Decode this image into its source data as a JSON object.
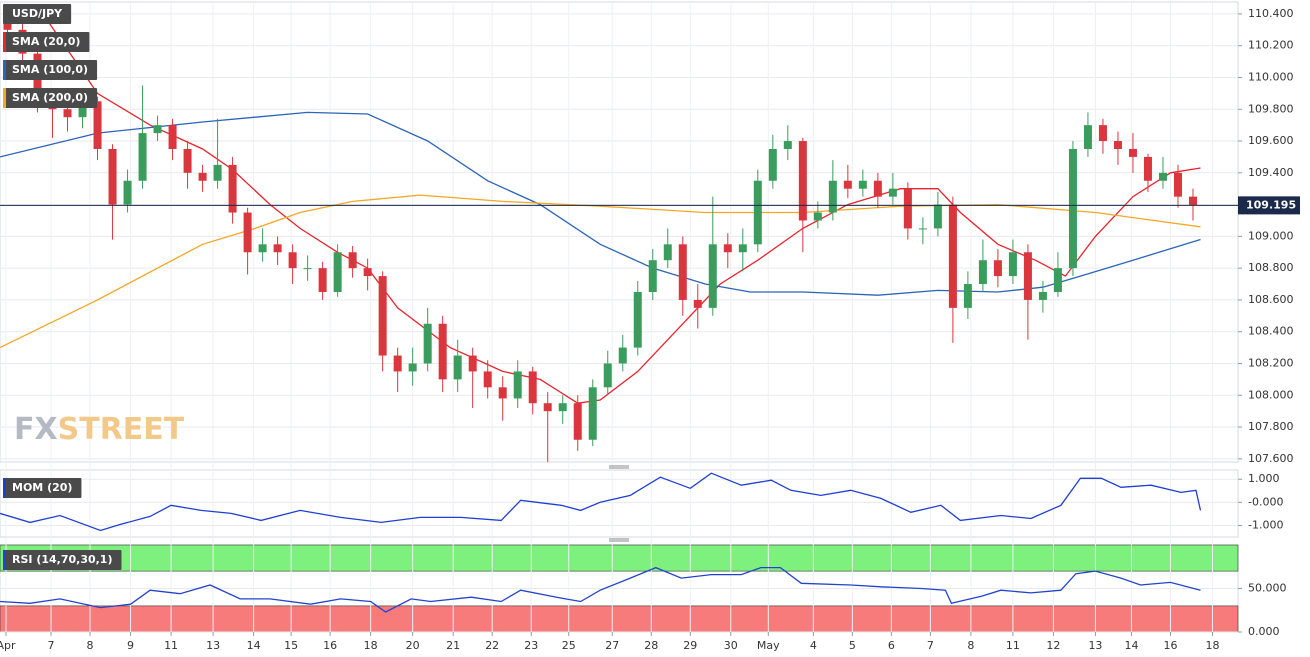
{
  "branding": {
    "watermark_a": "FX",
    "watermark_b": "STREET"
  },
  "chart_data": [
    {
      "type": "candlestick",
      "name": "USD/JPY",
      "up_color": "#3a9d5d",
      "down_color": "#d9363e",
      "open": [
        110.4,
        110.3,
        110.15,
        109.85,
        109.8,
        109.75,
        109.85,
        109.55,
        109.2,
        109.35,
        109.65,
        109.7,
        109.55,
        109.4,
        109.35,
        109.45,
        109.15,
        108.9,
        108.95,
        108.9,
        108.8,
        108.8,
        108.65,
        108.9,
        108.8,
        108.75,
        108.25,
        108.15,
        108.2,
        108.45,
        108.1,
        108.25,
        108.15,
        108.05,
        107.98,
        108.15,
        107.95,
        107.9,
        107.95,
        107.72,
        108.05,
        108.2,
        108.3,
        108.65,
        108.85,
        108.95,
        108.6,
        108.55,
        108.95,
        108.9,
        108.95,
        109.35,
        109.55,
        109.6,
        109.1,
        109.15,
        109.35,
        109.3,
        109.35,
        109.25,
        109.3,
        109.05,
        109.05,
        109.2,
        108.55,
        108.7,
        108.85,
        108.75,
        108.9,
        108.6,
        108.65,
        108.8,
        109.55,
        109.7,
        109.6,
        109.55,
        109.5,
        109.35,
        109.4,
        109.25
      ],
      "high": [
        110.45,
        110.36,
        110.2,
        109.92,
        109.86,
        109.9,
        109.88,
        109.58,
        109.42,
        109.95,
        109.76,
        109.74,
        109.6,
        109.45,
        109.74,
        109.5,
        109.18,
        109.05,
        109.0,
        108.95,
        108.88,
        108.84,
        108.95,
        108.94,
        108.86,
        108.78,
        108.3,
        108.3,
        108.55,
        108.5,
        108.35,
        108.3,
        108.22,
        108.12,
        108.22,
        108.18,
        108.02,
        108.0,
        108.0,
        108.1,
        108.28,
        108.38,
        108.72,
        108.92,
        109.05,
        109.0,
        108.7,
        109.25,
        109.02,
        109.05,
        109.42,
        109.64,
        109.7,
        109.62,
        109.22,
        109.48,
        109.45,
        109.42,
        109.4,
        109.4,
        109.34,
        109.12,
        109.28,
        109.25,
        108.78,
        108.98,
        108.92,
        108.98,
        108.95,
        108.72,
        108.9,
        109.6,
        109.78,
        109.74,
        109.66,
        109.65,
        109.52,
        109.5,
        109.45,
        109.3
      ],
      "low": [
        110.22,
        110.08,
        109.78,
        109.62,
        109.66,
        109.68,
        109.48,
        108.98,
        109.15,
        109.3,
        109.6,
        109.48,
        109.3,
        109.28,
        109.3,
        109.08,
        108.76,
        108.84,
        108.82,
        108.7,
        108.72,
        108.6,
        108.62,
        108.74,
        108.66,
        108.15,
        108.02,
        108.06,
        108.15,
        108.02,
        108.02,
        107.92,
        107.98,
        107.84,
        107.92,
        107.88,
        107.58,
        107.82,
        107.65,
        107.68,
        108.0,
        108.15,
        108.25,
        108.6,
        108.8,
        108.5,
        108.42,
        108.5,
        108.8,
        108.78,
        108.9,
        109.3,
        109.48,
        108.9,
        109.05,
        109.1,
        109.24,
        109.25,
        109.18,
        109.2,
        108.98,
        108.95,
        109.0,
        108.33,
        108.48,
        108.65,
        108.68,
        108.7,
        108.35,
        108.52,
        108.62,
        108.75,
        109.5,
        109.52,
        109.45,
        109.4,
        109.28,
        109.3,
        109.18,
        109.1
      ],
      "close": [
        110.3,
        110.15,
        109.85,
        109.8,
        109.75,
        109.85,
        109.55,
        109.2,
        109.35,
        109.65,
        109.7,
        109.55,
        109.4,
        109.35,
        109.45,
        109.15,
        108.9,
        108.95,
        108.9,
        108.8,
        108.8,
        108.65,
        108.9,
        108.8,
        108.75,
        108.25,
        108.15,
        108.2,
        108.45,
        108.1,
        108.25,
        108.15,
        108.05,
        107.98,
        108.15,
        107.95,
        107.9,
        107.95,
        107.72,
        108.05,
        108.2,
        108.3,
        108.65,
        108.85,
        108.95,
        108.6,
        108.55,
        108.95,
        108.9,
        108.95,
        109.35,
        109.55,
        109.6,
        109.1,
        109.15,
        109.35,
        109.3,
        109.35,
        109.25,
        109.3,
        109.05,
        109.05,
        109.2,
        108.55,
        108.7,
        108.85,
        108.75,
        108.9,
        108.6,
        108.65,
        108.8,
        109.55,
        109.7,
        109.6,
        109.55,
        109.5,
        109.35,
        109.4,
        109.25,
        109.195
      ],
      "series": [
        {
          "name": "SMA (20,0)",
          "color": "#e8242b",
          "x": [
            2,
            6,
            9.5,
            13,
            15,
            17.5,
            19.5,
            22,
            24,
            26,
            29.5,
            33,
            35.5,
            38,
            39.5,
            42,
            45,
            47.5,
            50,
            53,
            56,
            59.5,
            62,
            63.5,
            66,
            68.5,
            70.5,
            72.5,
            75,
            77.5,
            79.5
          ],
          "values": [
            110.45,
            109.9,
            109.7,
            109.55,
            109.42,
            109.2,
            109.05,
            108.9,
            108.8,
            108.55,
            108.3,
            108.15,
            108.1,
            107.95,
            107.97,
            108.15,
            108.45,
            108.7,
            108.85,
            109.05,
            109.2,
            109.3,
            109.3,
            109.15,
            108.95,
            108.85,
            108.75,
            109.0,
            109.25,
            109.4,
            109.43
          ]
        },
        {
          "name": "SMA (100,0)",
          "color": "#2b64b8",
          "x": [
            -0.5,
            6,
            13,
            20,
            24,
            28,
            32,
            35.5,
            39.5,
            43,
            46.5,
            49.5,
            53,
            58,
            62,
            66,
            69,
            71.5,
            75,
            79.5
          ],
          "values": [
            109.5,
            109.65,
            109.72,
            109.78,
            109.77,
            109.6,
            109.35,
            109.2,
            108.95,
            108.8,
            108.7,
            108.65,
            108.65,
            108.63,
            108.66,
            108.65,
            108.68,
            108.75,
            108.85,
            108.98
          ]
        },
        {
          "name": "SMA (200,0)",
          "color": "#f5a623",
          "x": [
            -0.5,
            6,
            13,
            16.5,
            19.5,
            23,
            27.5,
            33,
            39.5,
            46.5,
            53,
            59.5,
            66,
            72.5,
            79.5
          ],
          "values": [
            108.3,
            108.6,
            108.95,
            109.05,
            109.15,
            109.22,
            109.26,
            109.22,
            109.19,
            109.15,
            109.15,
            109.19,
            109.2,
            109.15,
            109.06
          ]
        }
      ],
      "last_price": 109.195,
      "last_price_color": "#1b2a4a",
      "xlim": [
        -0.5,
        82
      ],
      "ylim": [
        107.58,
        110.475
      ],
      "yticks": [
        {
          "value": 107.6,
          "label": "107.600"
        },
        {
          "value": 107.8,
          "label": "107.800"
        },
        {
          "value": 108.0,
          "label": "108.000"
        },
        {
          "value": 108.2,
          "label": "108.200"
        },
        {
          "value": 108.4,
          "label": "108.400"
        },
        {
          "value": 108.6,
          "label": "108.600"
        },
        {
          "value": 108.8,
          "label": "108.800"
        },
        {
          "value": 109.0,
          "label": "109.000"
        },
        {
          "value": 109.2,
          "label": "109.200"
        },
        {
          "value": 109.4,
          "label": "109.400"
        },
        {
          "value": 109.6,
          "label": "109.600"
        },
        {
          "value": 109.8,
          "label": "109.800"
        },
        {
          "value": 110.0,
          "label": "110.000"
        },
        {
          "value": 110.2,
          "label": "110.200"
        },
        {
          "value": 110.4,
          "label": "110.400"
        }
      ],
      "grid": true
    },
    {
      "type": "line",
      "series": [
        {
          "name": "MOM (20)",
          "color": "#1f3fd4",
          "x": [
            -0.5,
            1.5,
            3.5,
            6.2,
            7.5,
            9.5,
            10.9,
            12.9,
            14.9,
            16.9,
            19.5,
            22.2,
            24.9,
            27.5,
            30.2,
            32.9,
            34.2,
            36.9,
            38.2,
            39.5,
            41.5,
            43.5,
            45.5,
            46.9,
            48.9,
            50.9,
            52.2,
            54.2,
            56.2,
            58.2,
            60.2,
            62.2,
            63.5,
            66.2,
            68.2,
            70.2,
            71.5,
            72.9,
            74.2,
            76.2,
            78.2,
            79.2,
            79.5
          ],
          "values": [
            -0.48,
            -0.87,
            -0.57,
            -1.22,
            -0.96,
            -0.61,
            -0.13,
            -0.35,
            -0.48,
            -0.78,
            -0.35,
            -0.65,
            -0.87,
            -0.65,
            -0.65,
            -0.78,
            0.09,
            -0.13,
            -0.35,
            0,
            0.3,
            1.09,
            0.61,
            1.26,
            0.74,
            0.96,
            0.52,
            0.3,
            0.52,
            0.17,
            -0.43,
            -0.13,
            -0.78,
            -0.57,
            -0.7,
            -0.13,
            1.04,
            1.04,
            0.65,
            0.74,
            0.43,
            0.52,
            -0.35
          ]
        }
      ],
      "xlim": [
        -0.5,
        82
      ],
      "ylim": [
        -1.5,
        1.4
      ],
      "yticks": [
        {
          "value": 1,
          "label": "1.000"
        },
        {
          "value": 0,
          "label": "-0.000"
        },
        {
          "value": -1,
          "label": "-1.000"
        }
      ],
      "grid": true
    },
    {
      "type": "line",
      "series": [
        {
          "name": "RSI (14,70,30,1)",
          "color": "#2244cc",
          "x": [
            -0.5,
            1.5,
            3.5,
            6.2,
            8.2,
            9.5,
            11.5,
            13.5,
            15.5,
            17.5,
            20.2,
            22.2,
            24.2,
            25.2,
            26.9,
            28.2,
            30.9,
            32.9,
            34.2,
            36.9,
            38.2,
            39.5,
            41.5,
            43.2,
            44.9,
            46.9,
            48.9,
            50.2,
            51.5,
            52.9,
            56.2,
            58.2,
            60.9,
            62.5,
            62.9,
            64.9,
            66.2,
            68.2,
            70.2,
            71.2,
            72.5,
            74.2,
            75.5,
            77.5,
            79.5
          ],
          "values": [
            35,
            33,
            38,
            28,
            32,
            48,
            44,
            54,
            38,
            38,
            32,
            38,
            35,
            23,
            38,
            35,
            40,
            35,
            48,
            39,
            35,
            48,
            62,
            74,
            62,
            66,
            66,
            74,
            74,
            56,
            54,
            52,
            50,
            48,
            33,
            41,
            48,
            45,
            48,
            67,
            70,
            62,
            54,
            57,
            48
          ]
        }
      ],
      "overbought": 70,
      "oversold": 30,
      "overbought_color": "#7ef07e",
      "oversold_color": "#f77b7b",
      "xlim": [
        -0.5,
        82
      ],
      "ylim": [
        0,
        100
      ],
      "yticks": [
        {
          "value": 50,
          "label": "50.000"
        },
        {
          "value": 0,
          "label": "0.000"
        }
      ],
      "xticks": [
        {
          "value": -0.1,
          "label": "Apr"
        },
        {
          "value": 2.9,
          "label": "7"
        },
        {
          "value": 5.5,
          "label": "8"
        },
        {
          "value": 8.2,
          "label": "9"
        },
        {
          "value": 10.9,
          "label": "11"
        },
        {
          "value": 13.7,
          "label": "13"
        },
        {
          "value": 16.4,
          "label": "14"
        },
        {
          "value": 18.9,
          "label": "15"
        },
        {
          "value": 21.5,
          "label": "16"
        },
        {
          "value": 24.2,
          "label": "18"
        },
        {
          "value": 27,
          "label": "20"
        },
        {
          "value": 29.7,
          "label": "21"
        },
        {
          "value": 32.3,
          "label": "22"
        },
        {
          "value": 34.9,
          "label": "23"
        },
        {
          "value": 37.4,
          "label": "25"
        },
        {
          "value": 40.3,
          "label": "27"
        },
        {
          "value": 42.9,
          "label": "28"
        },
        {
          "value": 45.5,
          "label": "29"
        },
        {
          "value": 48.2,
          "label": "30"
        },
        {
          "value": 50.7,
          "label": "May"
        },
        {
          "value": 53.7,
          "label": "4"
        },
        {
          "value": 56.3,
          "label": "5"
        },
        {
          "value": 58.9,
          "label": "6"
        },
        {
          "value": 61.5,
          "label": "7"
        },
        {
          "value": 64.2,
          "label": "8"
        },
        {
          "value": 67,
          "label": "11"
        },
        {
          "value": 69.7,
          "label": "12"
        },
        {
          "value": 72.5,
          "label": "13"
        },
        {
          "value": 74.9,
          "label": "14"
        },
        {
          "value": 77.5,
          "label": "16"
        },
        {
          "value": 80.3,
          "label": "18"
        }
      ],
      "grid": true
    }
  ]
}
